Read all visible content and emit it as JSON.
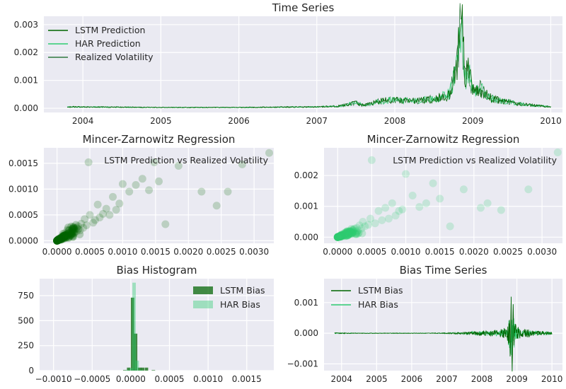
{
  "colors": {
    "background": "#eaeaf2",
    "grid": "#ffffff",
    "lstm": "#006400",
    "har": "#2ecc71",
    "realized": "#2f7a3f"
  },
  "chart_data": [
    {
      "id": "time_series",
      "type": "line",
      "title": "Time Series",
      "xlabel": "",
      "ylabel": "",
      "x_ticks": [
        "2004",
        "2005",
        "2006",
        "2007",
        "2008",
        "2009",
        "2010"
      ],
      "y_ticks": [
        "0.000",
        "0.001",
        "0.002",
        "0.003"
      ],
      "xlim": [
        2003.5,
        2010.15
      ],
      "ylim": [
        -0.00015,
        0.0033
      ],
      "grid": true,
      "legend_position": "top-left",
      "series": [
        {
          "name": "LSTM Prediction"
        },
        {
          "name": "HAR Prediction"
        },
        {
          "name": "Realized Volatility"
        }
      ],
      "x": [
        2003.8,
        2004.5,
        2005.0,
        2005.5,
        2006.0,
        2006.5,
        2007.0,
        2007.3,
        2007.5,
        2007.6,
        2007.8,
        2008.0,
        2008.2,
        2008.4,
        2008.6,
        2008.7,
        2008.75,
        2008.8,
        2008.85,
        2008.9,
        2008.95,
        2009.0,
        2009.1,
        2009.2,
        2009.3,
        2009.4,
        2009.6,
        2009.8,
        2010.0
      ],
      "values": [
        5e-05,
        4e-05,
        3e-05,
        3e-05,
        3e-05,
        4e-05,
        5e-05,
        8e-05,
        0.0002,
        0.0001,
        0.00025,
        0.0003,
        0.00025,
        0.0003,
        0.0004,
        0.0005,
        0.001,
        0.0016,
        0.0032,
        0.0011,
        0.0013,
        0.0006,
        0.0007,
        0.0004,
        0.0003,
        0.00025,
        0.00015,
        0.0001,
        5e-05
      ]
    },
    {
      "id": "mz_lstm",
      "type": "scatter",
      "title": "Mincer-Zarnowitz Regression",
      "xlabel": "",
      "ylabel": "",
      "annotation": "LSTM Prediction vs Realized Volatility",
      "x_ticks": [
        "0.0000",
        "0.0005",
        "0.0010",
        "0.0015",
        "0.0020",
        "0.0025",
        "0.0030"
      ],
      "y_ticks": [
        "0.0000",
        "0.0005",
        "0.0010",
        "0.0015"
      ],
      "xlim": [
        -0.0002,
        0.0033
      ],
      "ylim": [
        -5e-05,
        0.0018
      ],
      "grid": true,
      "color": "#006400",
      "points": [
        [
          0.00323,
          0.0017
        ],
        [
          0.00282,
          0.00148
        ],
        [
          0.0026,
          0.00095
        ],
        [
          0.00243,
          0.00068
        ],
        [
          0.0022,
          0.00095
        ],
        [
          0.00185,
          0.00145
        ],
        [
          0.00165,
          0.00032
        ],
        [
          0.00155,
          0.00115
        ],
        [
          0.00148,
          0.00152
        ],
        [
          0.0014,
          0.00098
        ],
        [
          0.0013,
          0.0012
        ],
        [
          0.0012,
          0.00108
        ],
        [
          0.0011,
          0.00095
        ],
        [
          0.001,
          0.0011
        ],
        [
          0.00095,
          0.00072
        ],
        [
          0.0009,
          0.0006
        ],
        [
          0.00085,
          0.00085
        ],
        [
          0.0008,
          0.0005
        ],
        [
          0.00075,
          0.00062
        ],
        [
          0.0007,
          0.00052
        ],
        [
          0.00065,
          0.00045
        ],
        [
          0.00062,
          0.0007
        ],
        [
          0.00058,
          0.0004
        ],
        [
          0.00055,
          0.00035
        ],
        [
          0.0005,
          0.0005
        ],
        [
          0.00048,
          0.00152
        ],
        [
          0.00045,
          0.0003
        ],
        [
          0.00042,
          0.00042
        ],
        [
          0.0004,
          0.00025
        ],
        [
          0.00037,
          0.00033
        ],
        [
          0.00035,
          0.0002
        ],
        [
          0.00032,
          0.00028
        ],
        [
          0.0003,
          0.00018
        ],
        [
          0.00028,
          0.00023
        ],
        [
          0.00026,
          0.00014
        ],
        [
          0.00024,
          0.00019
        ],
        [
          0.00022,
          0.00012
        ],
        [
          0.0002,
          0.00016
        ],
        [
          0.00018,
          0.0001
        ],
        [
          0.00016,
          0.00013
        ],
        [
          0.00014,
          8e-05
        ],
        [
          0.00012,
          0.0001
        ],
        [
          0.0001,
          6e-05
        ],
        [
          8e-05,
          7e-05
        ],
        [
          6e-05,
          4e-05
        ],
        [
          5e-05,
          5e-05
        ],
        [
          4e-05,
          3e-05
        ],
        [
          3e-05,
          2e-05
        ],
        [
          2e-05,
          2e-05
        ],
        [
          1e-05,
          1e-05
        ]
      ]
    },
    {
      "id": "mz_har",
      "type": "scatter",
      "title": "Mincer-Zarnowitz Regression",
      "xlabel": "",
      "ylabel": "",
      "annotation": "LSTM Prediction vs Realized Volatility",
      "x_ticks": [
        "0.0000",
        "0.0005",
        "0.0010",
        "0.0015",
        "0.0020",
        "0.0025",
        "0.0030"
      ],
      "y_ticks": [
        "0.000",
        "0.001",
        "0.002"
      ],
      "xlim": [
        -0.0002,
        0.0033
      ],
      "ylim": [
        -0.0002,
        0.0029
      ],
      "grid": true,
      "color": "#2ecc71",
      "points": [
        [
          0.00323,
          0.00275
        ],
        [
          0.0028,
          0.00155
        ],
        [
          0.0024,
          0.00088
        ],
        [
          0.0022,
          0.0011
        ],
        [
          0.0021,
          0.00095
        ],
        [
          0.00185,
          0.00155
        ],
        [
          0.00165,
          0.00035
        ],
        [
          0.0015,
          0.00125
        ],
        [
          0.0014,
          0.00175
        ],
        [
          0.0013,
          0.0011
        ],
        [
          0.0012,
          0.00098
        ],
        [
          0.0011,
          0.00135
        ],
        [
          0.001,
          0.00205
        ],
        [
          0.00095,
          0.0009
        ],
        [
          0.0009,
          0.00085
        ],
        [
          0.00085,
          0.0007
        ],
        [
          0.0008,
          0.0011
        ],
        [
          0.00075,
          0.0006
        ],
        [
          0.0007,
          0.00095
        ],
        [
          0.00065,
          0.00055
        ],
        [
          0.0006,
          0.00085
        ],
        [
          0.00055,
          0.00045
        ],
        [
          0.0005,
          0.0025
        ],
        [
          0.00048,
          0.0006
        ],
        [
          0.00045,
          0.0004
        ],
        [
          0.0004,
          0.00035
        ],
        [
          0.00037,
          0.0005
        ],
        [
          0.00035,
          0.00028
        ],
        [
          0.00032,
          0.00038
        ],
        [
          0.0003,
          0.00022
        ],
        [
          0.00028,
          0.0003
        ],
        [
          0.00025,
          0.00018
        ],
        [
          0.00022,
          0.00024
        ],
        [
          0.0002,
          0.00014
        ],
        [
          0.00018,
          0.00018
        ],
        [
          0.00016,
          0.00011
        ],
        [
          0.00014,
          0.00014
        ],
        [
          0.00012,
          8e-05
        ],
        [
          0.0001,
          0.0001
        ],
        [
          8e-05,
          6e-05
        ],
        [
          6e-05,
          7e-05
        ],
        [
          5e-05,
          4e-05
        ],
        [
          4e-05,
          4e-05
        ],
        [
          3e-05,
          3e-05
        ],
        [
          2e-05,
          2e-05
        ],
        [
          1e-05,
          1e-05
        ]
      ]
    },
    {
      "id": "bias_hist",
      "type": "bar",
      "title": "Bias Histogram",
      "xlabel": "",
      "ylabel": "",
      "x_ticks": [
        "−0.0010",
        "−0.0005",
        "0.0000",
        "0.0005",
        "0.0010",
        "0.0015"
      ],
      "y_ticks": [
        "0",
        "250",
        "500",
        "750"
      ],
      "xlim": [
        -0.00118,
        0.00185
      ],
      "ylim": [
        0,
        920
      ],
      "grid": true,
      "legend_position": "top-right",
      "bin_width": 4.44e-05,
      "series": [
        {
          "name": "LSTM Bias",
          "color": "#006400",
          "bins": [
            [
              -0.0001,
              5
            ],
            [
              -5e-05,
              30
            ],
            [
              0.0,
              730
            ],
            [
              4e-05,
              370
            ],
            [
              9e-05,
              30
            ],
            [
              0.00013,
              30
            ],
            [
              0.00018,
              30
            ],
            [
              0.00027,
              5
            ]
          ]
        },
        {
          "name": "HAR Bias",
          "color": "#2ecc71",
          "bins": [
            [
              -7e-05,
              6
            ],
            [
              -2e-05,
              25
            ],
            [
              2e-05,
              880
            ],
            [
              6e-05,
              100
            ],
            [
              0.00011,
              8
            ]
          ]
        }
      ]
    },
    {
      "id": "bias_ts",
      "type": "line",
      "title": "Bias Time Series",
      "xlabel": "",
      "ylabel": "",
      "x_ticks": [
        "2004",
        "2005",
        "2006",
        "2007",
        "2008",
        "2009",
        "2010"
      ],
      "y_ticks": [
        "−0.001",
        "0.000",
        "0.001"
      ],
      "xlim": [
        2003.5,
        2010.3
      ],
      "ylim": [
        -0.00122,
        0.00178
      ],
      "grid": true,
      "legend_position": "top-left",
      "series": [
        {
          "name": "LSTM Bias"
        },
        {
          "name": "HAR Bias"
        }
      ],
      "x": [
        2003.8,
        2004.5,
        2005.0,
        2005.5,
        2006.0,
        2006.5,
        2007.0,
        2007.5,
        2007.8,
        2008.0,
        2008.3,
        2008.5,
        2008.7,
        2008.8,
        2008.85,
        2008.9,
        2008.95,
        2009.0,
        2009.1,
        2009.3,
        2009.5,
        2009.8,
        2010.0
      ],
      "values": [
        2e-05,
        1e-05,
        1e-05,
        1e-05,
        1e-05,
        1e-05,
        2e-05,
        4e-05,
        8e-05,
        0.0001,
        0.00012,
        0.00015,
        0.0002,
        0.0008,
        0.00175,
        0.0011,
        0.0005,
        0.0003,
        0.0002,
        0.00015,
        0.0001,
        8e-05,
        5e-05
      ]
    }
  ]
}
